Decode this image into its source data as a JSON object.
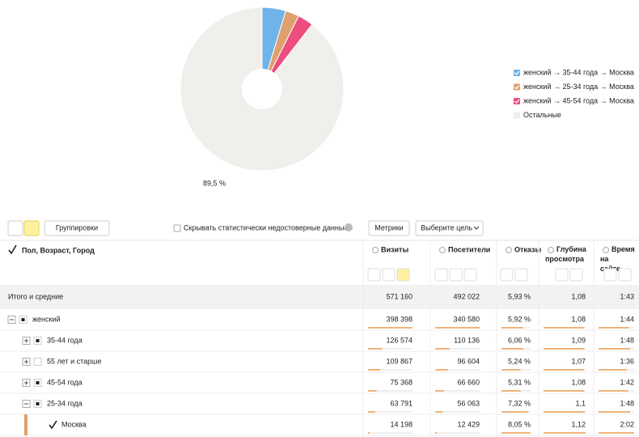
{
  "pie": {
    "labels": [
      "женский → 35-44 года → Москва",
      "женский → 25-34 года → Москва",
      "женский → 45-54 года → Москва",
      "Остальные"
    ],
    "colors": [
      "#6fb3e8",
      "#e0a06e",
      "#ec4e7f",
      "#f1efeb"
    ],
    "values": [
      4.7,
      2.7,
      3.1,
      89.5
    ],
    "value_label": "89,5 %"
  },
  "toolbar": {
    "groupings": "Группировки",
    "hide_unreliable": "Скрывать статистически недостоверные данные",
    "metrics": "Метрики",
    "goal": "Выберите цель"
  },
  "table": {
    "dimension": "Пол, Возраст, Город",
    "columns": [
      "Визиты",
      "Посетители",
      "Отказы",
      "Глубина просмотра",
      "Время на сайте"
    ],
    "total": {
      "name": "Итого и средние",
      "cells": [
        "571 160",
        "492 022",
        "5,93 %",
        "1,08",
        "1:43"
      ]
    },
    "rows": [
      {
        "name": "женский",
        "level": 0,
        "expanded": true,
        "mark": "square",
        "cells": [
          "398 398",
          "340 580",
          "5,92 %",
          "1,08",
          "1:44"
        ]
      },
      {
        "name": "35-44 года",
        "level": 1,
        "expanded": false,
        "mark": "square",
        "cells": [
          "126 574",
          "110 136",
          "6,06 %",
          "1,09",
          "1:48"
        ]
      },
      {
        "name": "55 лет и старше",
        "level": 1,
        "expanded": false,
        "mark": "empty",
        "cells": [
          "109 867",
          "96 604",
          "5,24 %",
          "1,07",
          "1:36"
        ]
      },
      {
        "name": "45-54 года",
        "level": 1,
        "expanded": false,
        "mark": "square",
        "cells": [
          "75 368",
          "66 660",
          "5,31 %",
          "1,08",
          "1:42"
        ]
      },
      {
        "name": "25-34 года",
        "level": 1,
        "expanded": true,
        "mark": "square",
        "cells": [
          "63 791",
          "56 063",
          "7,32 %",
          "1,1",
          "1:48"
        ]
      },
      {
        "name": "Москва",
        "level": 2,
        "expanded": null,
        "mark": "check",
        "cells": [
          "14 198",
          "12 429",
          "8,05 %",
          "1,12",
          "2:02"
        ]
      }
    ]
  }
}
